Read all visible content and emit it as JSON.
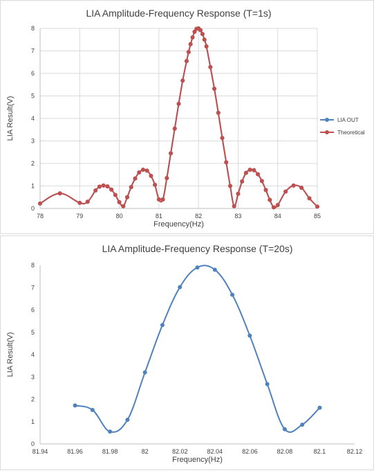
{
  "charts": [
    {
      "type": "line",
      "title": "LIA  Amplitude-Frequency Response (T=1s)",
      "xlabel": "Frequency(Hz)",
      "ylabel": "LIA Result(V)",
      "xlim": [
        78,
        85
      ],
      "ylim": [
        0,
        8
      ],
      "xticks": [
        78,
        79,
        80,
        81,
        82,
        83,
        84,
        85
      ],
      "yticks": [
        0,
        1,
        2,
        3,
        4,
        5,
        6,
        7,
        8
      ],
      "grid": true,
      "legend": "right",
      "series": [
        {
          "name": "LIA OUT",
          "color": "#4f81bd",
          "x": [
            78.0,
            78.5,
            79.0,
            79.2,
            79.4,
            79.5,
            79.6,
            79.7,
            79.8,
            79.9,
            80.0,
            80.1,
            80.2,
            80.3,
            80.4,
            80.5,
            80.6,
            80.7,
            80.8,
            80.9,
            81.0,
            81.1,
            81.2,
            81.3,
            81.4,
            81.5,
            81.6,
            81.7,
            81.75,
            81.8,
            81.85,
            81.9,
            81.95,
            82.0,
            82.05,
            82.1,
            82.15,
            82.2,
            82.3,
            82.4,
            82.5,
            82.6,
            82.7,
            82.8,
            82.9,
            83.0,
            83.1,
            83.2,
            83.3,
            83.4,
            83.5,
            83.6,
            83.7,
            83.8,
            83.9,
            84.0,
            84.2,
            84.4,
            84.6,
            84.8,
            85.0
          ],
          "y": [
            0.22,
            0.67,
            0.25,
            0.3,
            0.8,
            0.97,
            1.02,
            0.98,
            0.84,
            0.6,
            0.28,
            0.1,
            0.5,
            0.95,
            1.33,
            1.6,
            1.72,
            1.68,
            1.45,
            1.05,
            0.4,
            0.4,
            1.35,
            2.45,
            3.55,
            4.65,
            5.68,
            6.55,
            6.95,
            7.3,
            7.6,
            7.85,
            7.98,
            8.0,
            7.92,
            7.75,
            7.5,
            7.2,
            6.28,
            5.32,
            4.25,
            3.13,
            2.05,
            1.0,
            0.1,
            0.65,
            1.2,
            1.58,
            1.72,
            1.7,
            1.52,
            1.22,
            0.82,
            0.38,
            0.05,
            0.15,
            0.75,
            1.02,
            0.92,
            0.45,
            0.08
          ]
        },
        {
          "name": "Theoretical",
          "color": "#c0504d",
          "x": [
            78.0,
            78.5,
            79.0,
            79.2,
            79.4,
            79.5,
            79.6,
            79.7,
            79.8,
            79.9,
            80.0,
            80.1,
            80.2,
            80.3,
            80.4,
            80.5,
            80.6,
            80.7,
            80.8,
            80.9,
            81.0,
            81.1,
            81.2,
            81.3,
            81.4,
            81.5,
            81.6,
            81.7,
            81.75,
            81.8,
            81.85,
            81.9,
            81.95,
            82.0,
            82.05,
            82.1,
            82.15,
            82.2,
            82.3,
            82.4,
            82.5,
            82.6,
            82.7,
            82.8,
            82.9,
            83.0,
            83.1,
            83.2,
            83.3,
            83.4,
            83.5,
            83.6,
            83.7,
            83.8,
            83.9,
            84.0,
            84.2,
            84.4,
            84.6,
            84.8,
            85.0
          ],
          "y": [
            0.22,
            0.67,
            0.25,
            0.3,
            0.8,
            0.97,
            1.02,
            0.98,
            0.84,
            0.6,
            0.28,
            0.1,
            0.5,
            0.95,
            1.33,
            1.6,
            1.72,
            1.68,
            1.45,
            1.05,
            0.4,
            0.4,
            1.35,
            2.45,
            3.55,
            4.65,
            5.68,
            6.55,
            6.95,
            7.3,
            7.6,
            7.85,
            7.98,
            8.0,
            7.92,
            7.75,
            7.5,
            7.2,
            6.28,
            5.32,
            4.25,
            3.13,
            2.05,
            1.0,
            0.1,
            0.65,
            1.2,
            1.58,
            1.72,
            1.7,
            1.52,
            1.22,
            0.82,
            0.38,
            0.05,
            0.15,
            0.75,
            1.02,
            0.92,
            0.45,
            0.08
          ]
        }
      ]
    },
    {
      "type": "line",
      "title": "LIA  Amplitude-Frequency Response (T=20s)",
      "xlabel": "Frequency(Hz)",
      "ylabel": "LIA Result(V)",
      "xlim": [
        81.94,
        82.12
      ],
      "ylim": [
        0,
        8
      ],
      "xticks": [
        81.94,
        81.96,
        81.98,
        82,
        82.02,
        82.04,
        82.06,
        82.08,
        82.1,
        82.12
      ],
      "xtick_labels": [
        "81.94",
        "81.96",
        "81.98",
        "82",
        "82.02",
        "82.04",
        "82.06",
        "82.08",
        "82.1",
        "82.12"
      ],
      "yticks": [
        0,
        1,
        2,
        3,
        4,
        5,
        6,
        7,
        8
      ],
      "grid": false,
      "series": [
        {
          "color": "#4f81bd",
          "x": [
            81.96,
            81.97,
            81.98,
            81.99,
            82.0,
            82.01,
            82.02,
            82.03,
            82.04,
            82.05,
            82.06,
            82.07,
            82.08,
            82.09,
            82.1
          ],
          "y": [
            1.72,
            1.52,
            0.55,
            1.08,
            3.2,
            5.32,
            7.02,
            7.9,
            7.8,
            6.68,
            4.85,
            2.68,
            0.66,
            0.86,
            1.62
          ]
        }
      ]
    }
  ]
}
